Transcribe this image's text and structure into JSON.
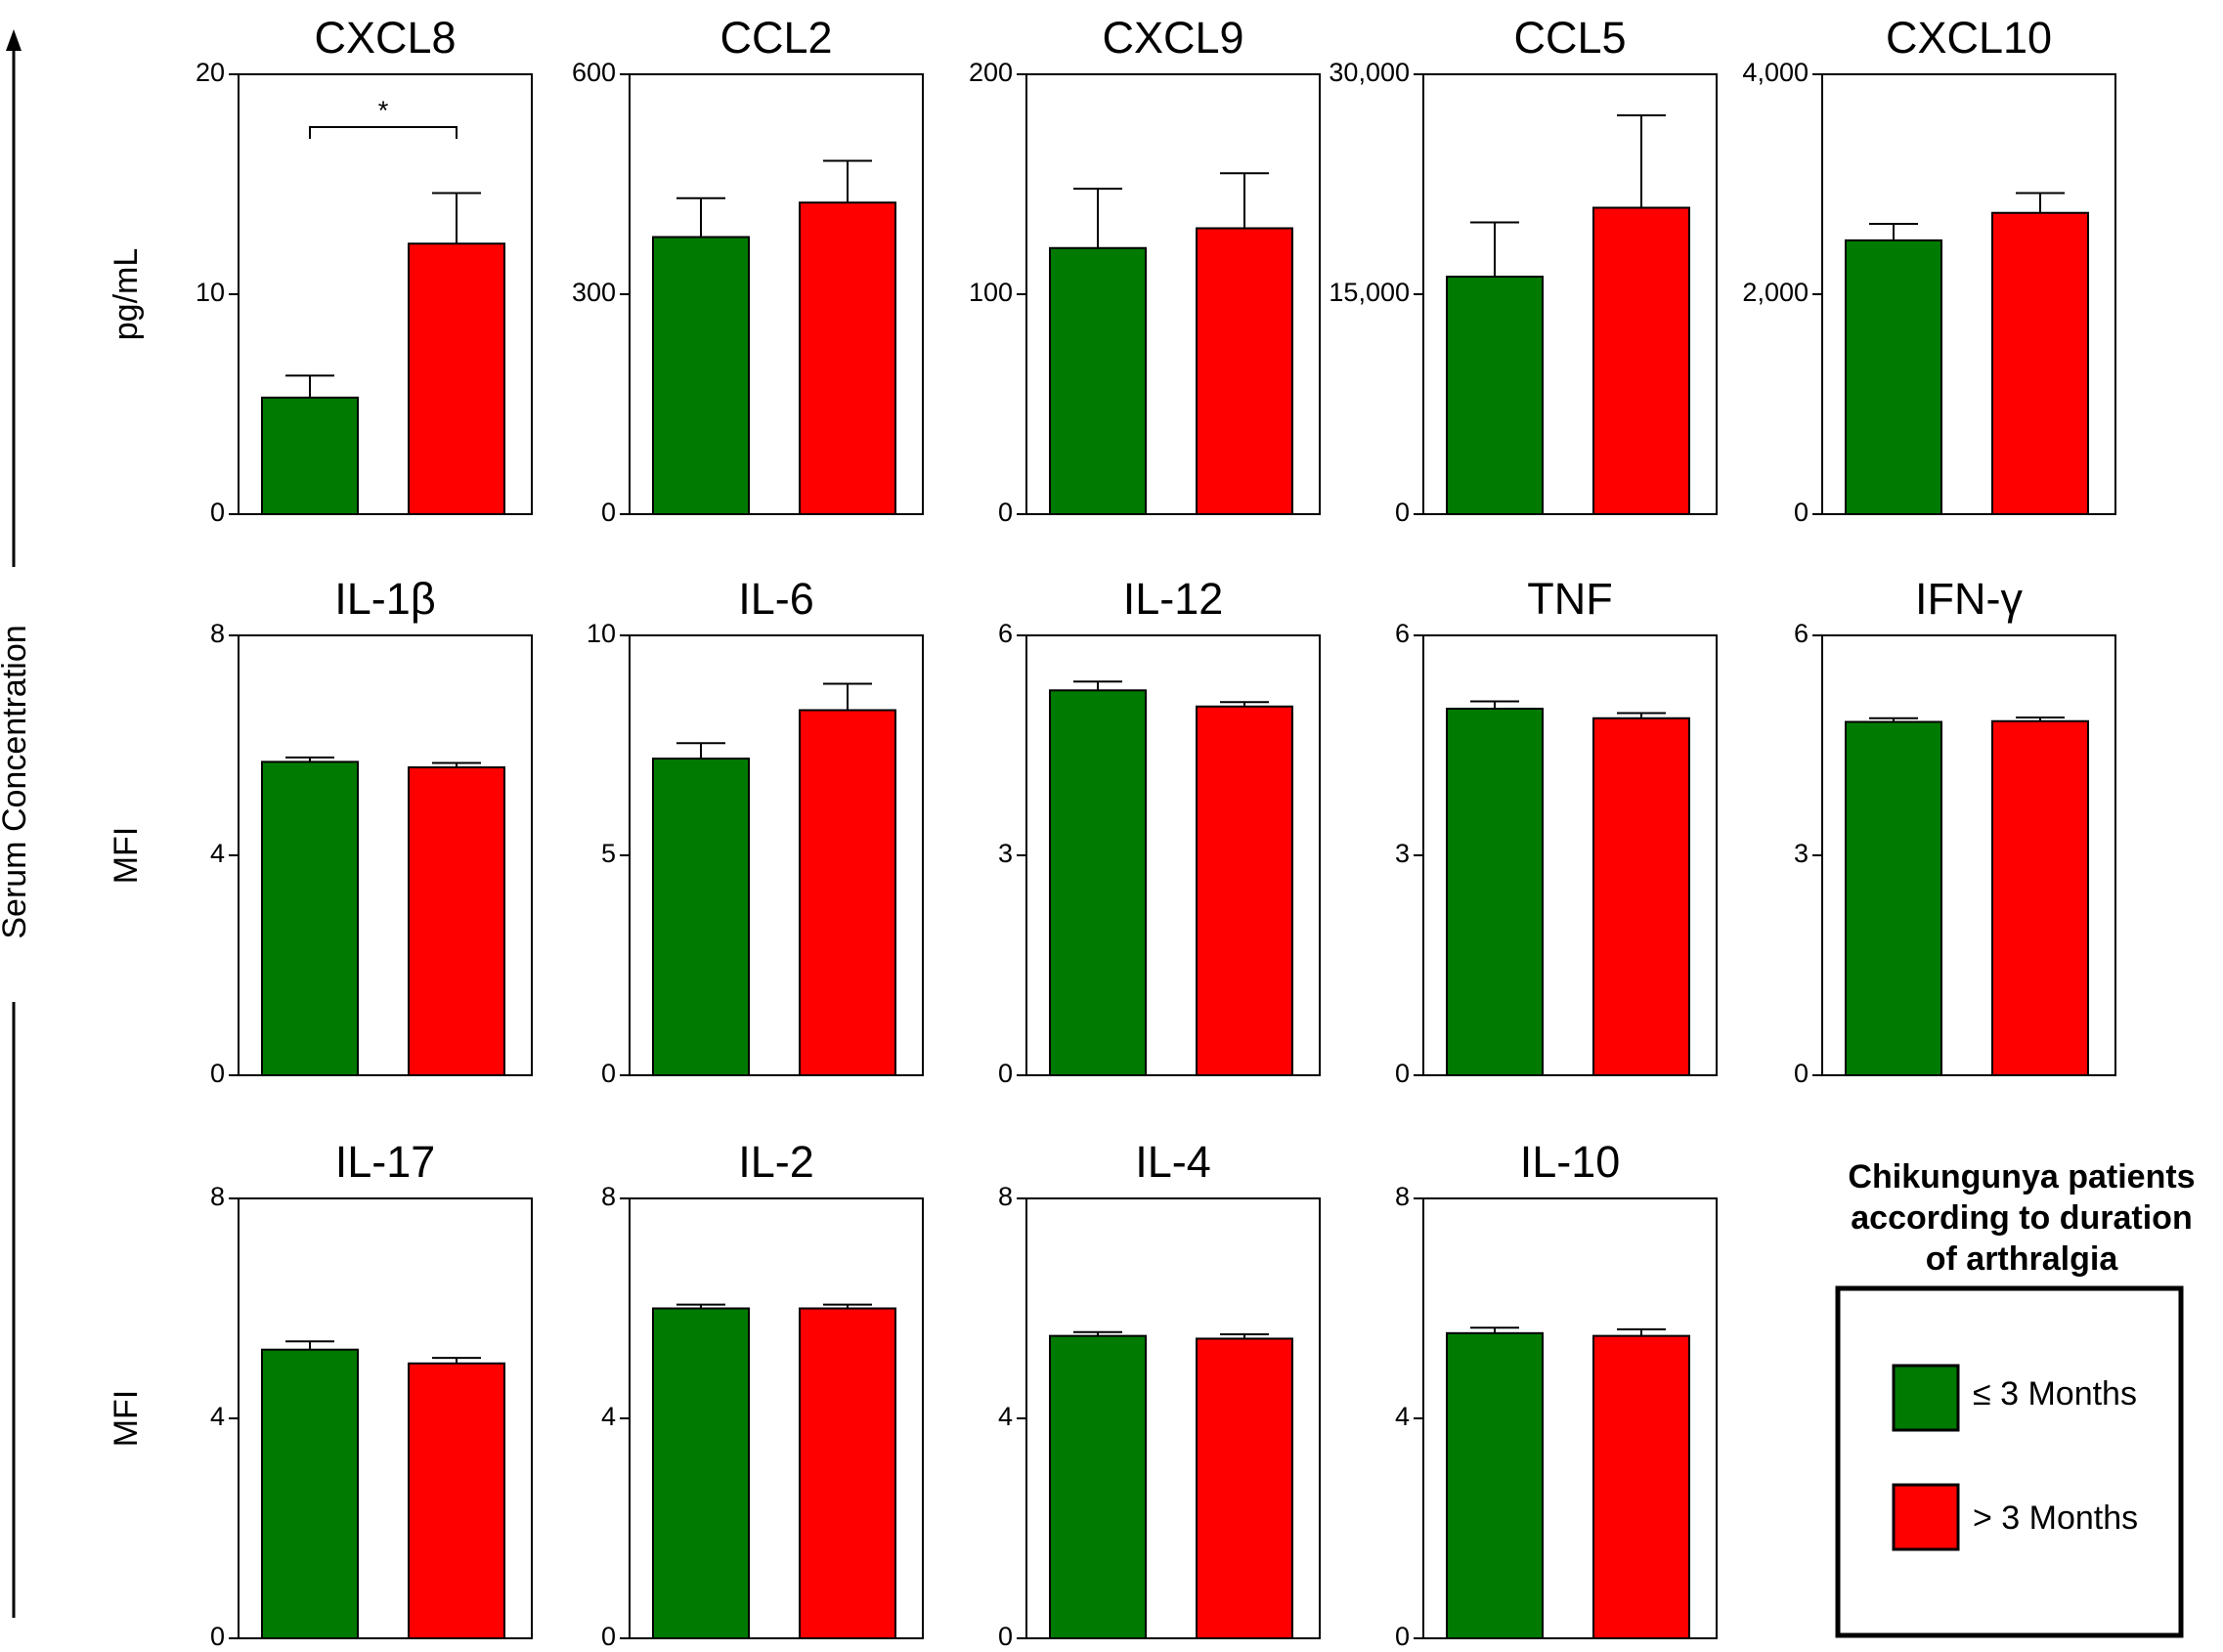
{
  "y_axis_label": "Serum Concentration",
  "series_colors": [
    "#007a00",
    "#ff0000"
  ],
  "legend": {
    "title": [
      "Chikungunya patients",
      "according to duration",
      "of arthralgia"
    ],
    "items": [
      "≤ 3 Months",
      "> 3 Months"
    ]
  },
  "chart_data": [
    {
      "type": "bar",
      "title": "CXCL8",
      "ylabel": "pg/mL",
      "ylim": [
        0,
        20
      ],
      "yticks": [
        "0",
        "10",
        "20"
      ],
      "series": [
        {
          "name": "≤ 3 Months",
          "value": 5.3,
          "error": 1.0
        },
        {
          "name": "> 3 Months",
          "value": 12.3,
          "error": 2.3
        }
      ],
      "significance": "*"
    },
    {
      "type": "bar",
      "title": "CCL2",
      "ylabel": "",
      "ylim": [
        0,
        600
      ],
      "yticks": [
        "0",
        "300",
        "600"
      ],
      "series": [
        {
          "name": "≤ 3 Months",
          "value": 378,
          "error": 53
        },
        {
          "name": "> 3 Months",
          "value": 425,
          "error": 57
        }
      ]
    },
    {
      "type": "bar",
      "title": "CXCL9",
      "ylabel": "",
      "ylim": [
        0,
        200
      ],
      "yticks": [
        "0",
        "100",
        "200"
      ],
      "series": [
        {
          "name": "≤ 3 Months",
          "value": 121,
          "error": 27
        },
        {
          "name": "> 3 Months",
          "value": 130,
          "error": 25
        }
      ]
    },
    {
      "type": "bar",
      "title": "CCL5",
      "ylabel": "",
      "ylim": [
        0,
        30000
      ],
      "yticks": [
        "0",
        "15,000",
        "30,000"
      ],
      "series": [
        {
          "name": "≤ 3 Months",
          "value": 16200,
          "error": 3700
        },
        {
          "name": "> 3 Months",
          "value": 20900,
          "error": 6300
        }
      ]
    },
    {
      "type": "bar",
      "title": "CXCL10",
      "ylabel": "",
      "ylim": [
        0,
        4000
      ],
      "yticks": [
        "0",
        "2,000",
        "4,000"
      ],
      "series": [
        {
          "name": "≤ 3 Months",
          "value": 2490,
          "error": 150
        },
        {
          "name": "> 3 Months",
          "value": 2740,
          "error": 180
        }
      ]
    },
    {
      "type": "bar",
      "title": "IL-1β",
      "ylabel": "MFI",
      "ylim": [
        0,
        8
      ],
      "yticks": [
        "0",
        "4",
        "8"
      ],
      "series": [
        {
          "name": "≤ 3 Months",
          "value": 5.7,
          "error": 0.08
        },
        {
          "name": "> 3 Months",
          "value": 5.6,
          "error": 0.08
        }
      ]
    },
    {
      "type": "bar",
      "title": "IL-6",
      "ylabel": "",
      "ylim": [
        0,
        10
      ],
      "yticks": [
        "0",
        "5",
        "10"
      ],
      "series": [
        {
          "name": "≤ 3 Months",
          "value": 7.2,
          "error": 0.35
        },
        {
          "name": "> 3 Months",
          "value": 8.3,
          "error": 0.6
        }
      ]
    },
    {
      "type": "bar",
      "title": "IL-12",
      "ylabel": "",
      "ylim": [
        0,
        6
      ],
      "yticks": [
        "0",
        "3",
        "6"
      ],
      "series": [
        {
          "name": "≤ 3 Months",
          "value": 5.25,
          "error": 0.12
        },
        {
          "name": "> 3 Months",
          "value": 5.03,
          "error": 0.06
        }
      ]
    },
    {
      "type": "bar",
      "title": "TNF",
      "ylabel": "",
      "ylim": [
        0,
        6
      ],
      "yticks": [
        "0",
        "3",
        "6"
      ],
      "series": [
        {
          "name": "≤ 3 Months",
          "value": 5.0,
          "error": 0.1
        },
        {
          "name": "> 3 Months",
          "value": 4.87,
          "error": 0.07
        }
      ]
    },
    {
      "type": "bar",
      "title": "IFN-γ",
      "ylabel": "",
      "ylim": [
        0,
        6
      ],
      "yticks": [
        "0",
        "3",
        "6"
      ],
      "series": [
        {
          "name": "≤ 3 Months",
          "value": 4.82,
          "error": 0.05
        },
        {
          "name": "> 3 Months",
          "value": 4.83,
          "error": 0.05
        }
      ]
    },
    {
      "type": "bar",
      "title": "IL-17",
      "ylabel": "MFI",
      "ylim": [
        0,
        8
      ],
      "yticks": [
        "0",
        "4",
        "8"
      ],
      "series": [
        {
          "name": "≤ 3 Months",
          "value": 5.25,
          "error": 0.15
        },
        {
          "name": "> 3 Months",
          "value": 5.0,
          "error": 0.1
        }
      ]
    },
    {
      "type": "bar",
      "title": "IL-2",
      "ylabel": "",
      "ylim": [
        0,
        8
      ],
      "yticks": [
        "0",
        "4",
        "8"
      ],
      "series": [
        {
          "name": "≤ 3 Months",
          "value": 6.0,
          "error": 0.07
        },
        {
          "name": "> 3 Months",
          "value": 6.0,
          "error": 0.07
        }
      ]
    },
    {
      "type": "bar",
      "title": "IL-4",
      "ylabel": "",
      "ylim": [
        0,
        8
      ],
      "yticks": [
        "0",
        "4",
        "8"
      ],
      "series": [
        {
          "name": "≤ 3 Months",
          "value": 5.5,
          "error": 0.07
        },
        {
          "name": "> 3 Months",
          "value": 5.45,
          "error": 0.08
        }
      ]
    },
    {
      "type": "bar",
      "title": "IL-10",
      "ylabel": "",
      "ylim": [
        0,
        8
      ],
      "yticks": [
        "0",
        "4",
        "8"
      ],
      "series": [
        {
          "name": "≤ 3 Months",
          "value": 5.55,
          "error": 0.1
        },
        {
          "name": "> 3 Months",
          "value": 5.5,
          "error": 0.12
        }
      ]
    }
  ]
}
